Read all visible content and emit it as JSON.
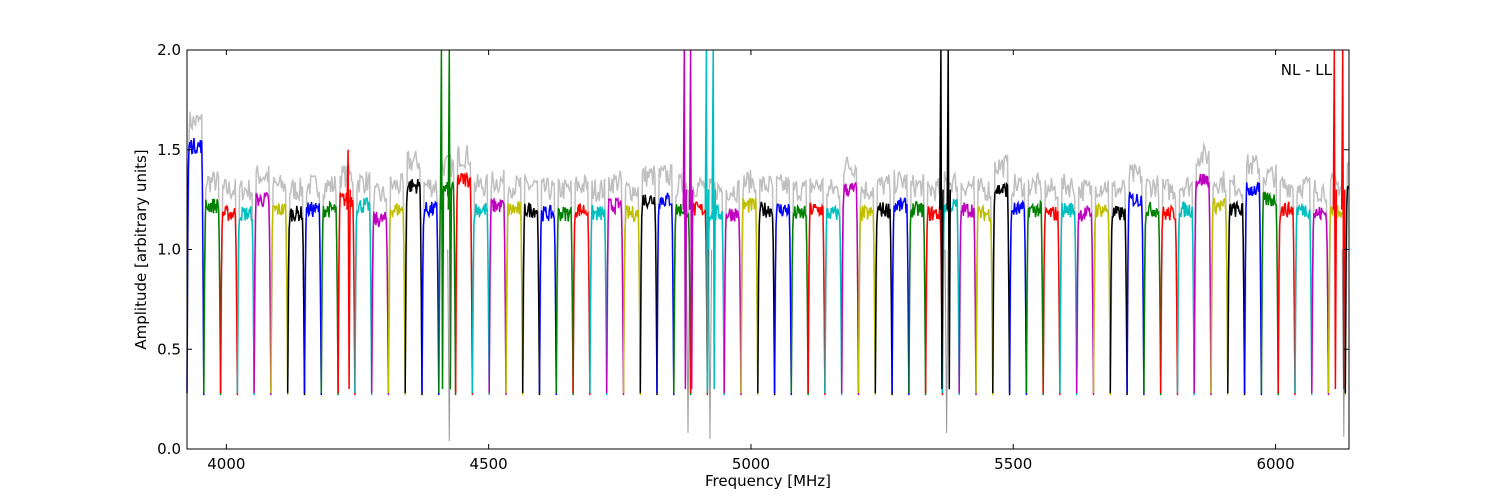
{
  "chart_data": {
    "type": "line",
    "title": "",
    "annotation": "NL - LL",
    "xlabel": "Frequency [MHz]",
    "ylabel": "Amplitude [arbitrary units]",
    "xlim": [
      3925,
      6140
    ],
    "ylim": [
      0.0,
      2.0
    ],
    "xticks": [
      4000,
      4500,
      5000,
      5500,
      6000
    ],
    "xtick_labels": [
      "4000",
      "4500",
      "5000",
      "5500",
      "6000"
    ],
    "yticks": [
      0.0,
      0.5,
      1.0,
      1.5,
      2.0
    ],
    "ytick_labels": [
      "0.0",
      "0.5",
      "1.0",
      "1.5",
      "2.0"
    ],
    "grid": false,
    "legend": "none",
    "background_series": {
      "name": "raw spectrum",
      "color": "#c0c0c0"
    },
    "band_colors": [
      "#0000ff",
      "#008000",
      "#ff0000",
      "#00bfbf",
      "#bf00bf",
      "#bfbf00",
      "#000000"
    ],
    "band_start": 3925,
    "band_width": 32,
    "band_plateau": [
      1.52,
      1.22,
      1.18,
      1.18,
      1.25,
      1.2,
      1.18,
      1.2,
      1.2,
      1.25,
      1.22,
      1.15,
      1.2,
      1.32,
      1.2,
      1.3,
      1.35,
      1.2,
      1.22,
      1.2,
      1.2,
      1.18,
      1.18,
      1.2,
      1.18,
      1.22,
      1.18,
      1.25,
      1.25,
      1.2,
      1.2,
      1.18,
      1.18,
      1.22,
      1.2,
      1.2,
      1.18,
      1.2,
      1.18,
      1.3,
      1.18,
      1.2,
      1.22,
      1.2,
      1.18,
      1.22,
      1.2,
      1.18,
      1.3,
      1.2,
      1.2,
      1.18,
      1.2,
      1.18,
      1.2,
      1.18,
      1.25,
      1.2,
      1.18,
      1.2,
      1.35,
      1.22,
      1.2,
      1.3,
      1.25,
      1.2,
      1.2,
      1.18,
      1.2,
      1.3
    ],
    "spikes": [
      {
        "x": 4232,
        "ymax": 1.5,
        "color": "#ff0000"
      },
      {
        "x": 4410,
        "ymax": 2.0,
        "color": "#008000"
      },
      {
        "x": 4425,
        "ymax": 2.0,
        "color": "#008000"
      },
      {
        "x": 4873,
        "ymax": 2.0,
        "color": "#bf00bf"
      },
      {
        "x": 4885,
        "ymax": 2.0,
        "color": "#bf00bf"
      },
      {
        "x": 4915,
        "ymax": 2.0,
        "color": "#00bfbf"
      },
      {
        "x": 4928,
        "ymax": 2.0,
        "color": "#00bfbf"
      },
      {
        "x": 5362,
        "ymax": 2.0,
        "color": "#000000"
      },
      {
        "x": 5376,
        "ymax": 2.0,
        "color": "#000000"
      },
      {
        "x": 6112,
        "ymax": 2.0,
        "color": "#ff0000"
      },
      {
        "x": 6128,
        "ymax": 2.0,
        "color": "#ff0000"
      }
    ],
    "minima": [
      {
        "x": 4425,
        "y": 0.04
      },
      {
        "x": 4880,
        "y": 0.08
      },
      {
        "x": 4922,
        "y": 0.05
      },
      {
        "x": 5373,
        "y": 0.08
      },
      {
        "x": 6130,
        "y": 0.06
      }
    ]
  }
}
